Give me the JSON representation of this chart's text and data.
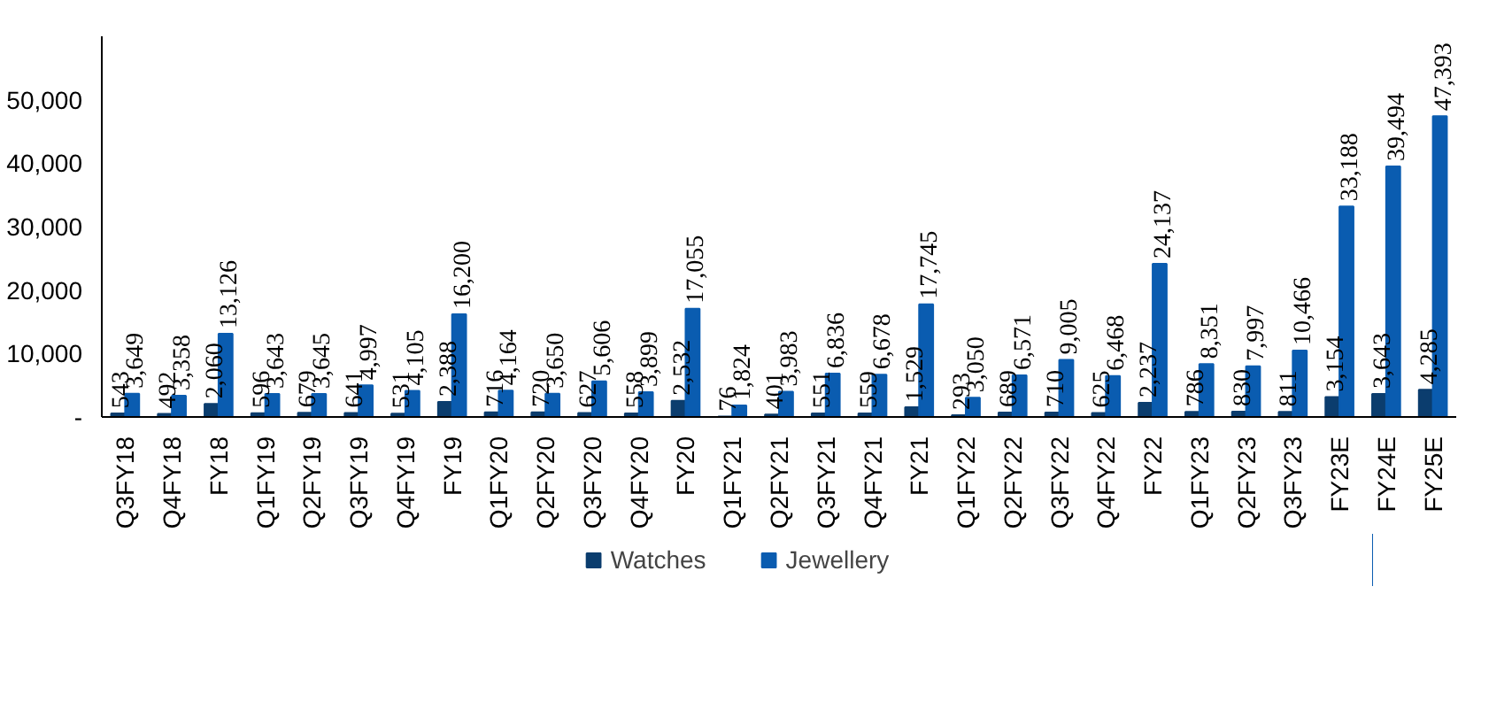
{
  "chart_data": {
    "type": "bar",
    "categories": [
      "Q3FY18",
      "Q4FY18",
      "FY18",
      "Q1FY19",
      "Q2FY19",
      "Q3FY19",
      "Q4FY19",
      "FY19",
      "Q1FY20",
      "Q2FY20",
      "Q3FY20",
      "Q4FY20",
      "FY20",
      "Q1FY21",
      "Q2FY21",
      "Q3FY21",
      "Q4FY21",
      "FY21",
      "Q1FY22",
      "Q2FY22",
      "Q3FY22",
      "Q4FY22",
      "FY22",
      "Q1FY23",
      "Q2FY23",
      "Q3FY23",
      "FY23E",
      "FY24E",
      "FY25E"
    ],
    "series": [
      {
        "name": "Watches",
        "color": "#0b3d6e",
        "values": [
          543,
          492,
          2060,
          596,
          679,
          641,
          531,
          2388,
          716,
          720,
          627,
          558,
          2532,
          76,
          401,
          551,
          559,
          1529,
          293,
          689,
          710,
          625,
          2237,
          786,
          830,
          811,
          3154,
          3643,
          4285
        ],
        "value_labels": [
          "543",
          "492",
          "2,060",
          "596",
          "679",
          "641",
          "531",
          "2,388",
          "716",
          "720",
          "627",
          "558",
          "2,532",
          "76",
          "401",
          "551",
          "559",
          "1,529",
          "293",
          "689",
          "710",
          "625",
          "2,237",
          "786",
          "830",
          "811",
          "3,154",
          "3,643",
          "4,285"
        ]
      },
      {
        "name": "Jewellery",
        "color": "#0a5cb0",
        "values": [
          3649,
          3358,
          13126,
          3643,
          3645,
          4997,
          4105,
          16200,
          4164,
          3650,
          5606,
          3899,
          17055,
          1824,
          3983,
          6836,
          6678,
          17745,
          3050,
          6571,
          9005,
          6468,
          24137,
          8351,
          7997,
          10466,
          33188,
          39494,
          47393
        ],
        "value_labels": [
          "3,649",
          "3,358",
          "13,126",
          "3,643",
          "3,645",
          "4,997",
          "4,105",
          "16,200",
          "4,164",
          "3,650",
          "5,606",
          "3,899",
          "17,055",
          "1,824",
          "3,983",
          "6,836",
          "6,678",
          "17,745",
          "3,050",
          "6,571",
          "9,005",
          "6,468",
          "24,137",
          "8,351",
          "7,997",
          "10,466",
          "33,188",
          "39,494",
          "47,393"
        ]
      }
    ],
    "ylim": [
      0,
      60000
    ],
    "yticks": [
      {
        "value": 0,
        "label": "-"
      },
      {
        "value": 10000,
        "label": "10,000"
      },
      {
        "value": 20000,
        "label": "20,000"
      },
      {
        "value": 30000,
        "label": "30,000"
      },
      {
        "value": 40000,
        "label": "40,000"
      },
      {
        "value": 50000,
        "label": "50,000"
      }
    ],
    "legend": "bottom",
    "grid": false
  }
}
